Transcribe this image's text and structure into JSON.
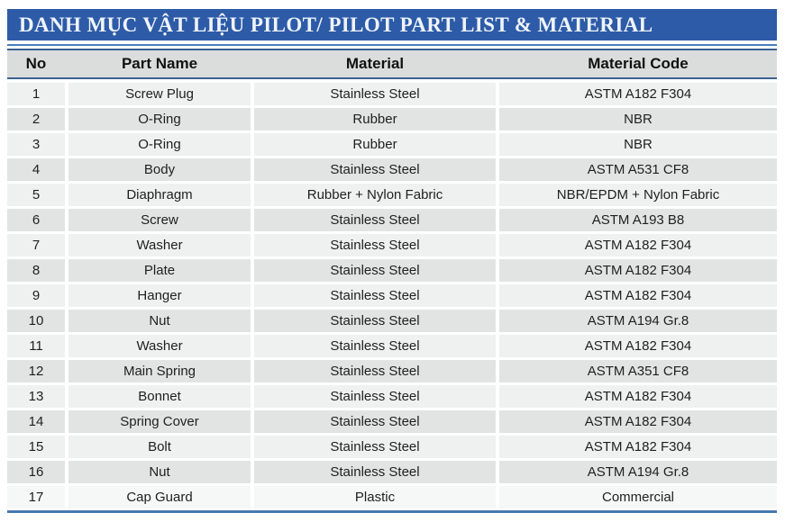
{
  "title": "DANH MỤC VẬT LIỆU PILOT/ PILOT PART LIST & MATERIAL",
  "table": {
    "columns": [
      "No",
      "Part Name",
      "Material",
      "Material Code"
    ],
    "rows": [
      [
        "1",
        "Screw Plug",
        "Stainless Steel",
        "ASTM A182 F304"
      ],
      [
        "2",
        "O-Ring",
        "Rubber",
        "NBR"
      ],
      [
        "3",
        "O-Ring",
        "Rubber",
        "NBR"
      ],
      [
        "4",
        "Body",
        "Stainless Steel",
        "ASTM A531 CF8"
      ],
      [
        "5",
        "Diaphragm",
        "Rubber + Nylon Fabric",
        "NBR/EPDM + Nylon Fabric"
      ],
      [
        "6",
        "Screw",
        "Stainless Steel",
        "ASTM A193 B8"
      ],
      [
        "7",
        "Washer",
        "Stainless Steel",
        "ASTM A182 F304"
      ],
      [
        "8",
        "Plate",
        "Stainless Steel",
        "ASTM A182 F304"
      ],
      [
        "9",
        "Hanger",
        "Stainless Steel",
        "ASTM A182 F304"
      ],
      [
        "10",
        "Nut",
        "Stainless Steel",
        "ASTM A194 Gr.8"
      ],
      [
        "11",
        "Washer",
        "Stainless Steel",
        "ASTM A182 F304"
      ],
      [
        "12",
        "Main Spring",
        "Stainless Steel",
        "ASTM A351 CF8"
      ],
      [
        "13",
        "Bonnet",
        "Stainless Steel",
        "ASTM A182 F304"
      ],
      [
        "14",
        "Spring Cover",
        "Stainless Steel",
        "ASTM A182 F304"
      ],
      [
        "15",
        "Bolt",
        "Stainless Steel",
        "ASTM A182 F304"
      ],
      [
        "16",
        "Nut",
        "Stainless Steel",
        "ASTM A194 Gr.8"
      ],
      [
        "17",
        "Cap Guard",
        "Plastic",
        "Commercial"
      ]
    ]
  },
  "colors": {
    "title_bar_bg": "#2D5BA7",
    "title_text": "#EFF4FB",
    "title_line": "#4A7EBB",
    "header_bg": "#DBDDDD",
    "header_border": "#3A6190",
    "row_odd": "#EFF0F0",
    "row_even": "#E2E4E4",
    "row_last": "#F6F7F7",
    "bottom_border": "#4779B4"
  }
}
